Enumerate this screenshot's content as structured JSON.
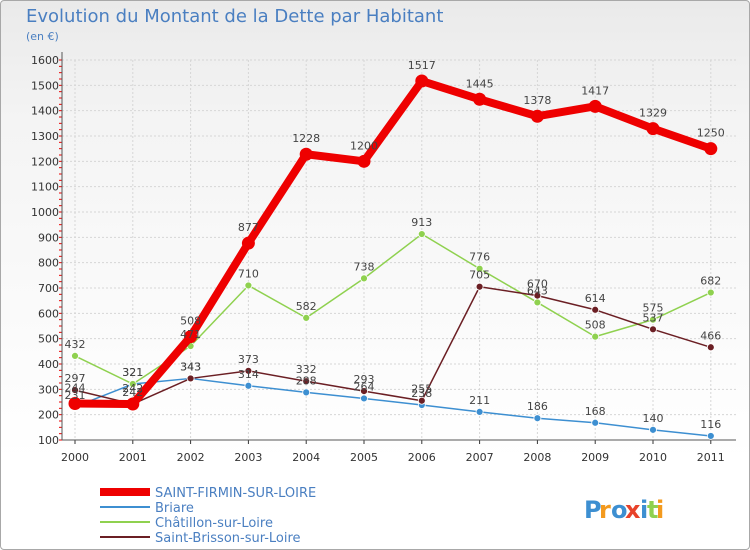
{
  "chart_data": {
    "type": "line",
    "title": "Evolution du Montant de la Dette par Habitant",
    "subtitle": "(en €)",
    "x": [
      2000,
      2001,
      2002,
      2003,
      2004,
      2005,
      2006,
      2007,
      2008,
      2009,
      2010,
      2011
    ],
    "ylim": [
      100,
      1600
    ],
    "yticks": [
      100,
      200,
      300,
      400,
      500,
      600,
      700,
      800,
      900,
      1000,
      1100,
      1200,
      1300,
      1400,
      1500,
      1600
    ],
    "grid": true,
    "legend_position": "bottom-left",
    "series": [
      {
        "name": "SAINT-FIRMIN-SUR-LOIRE",
        "color": "#ee0000",
        "values": [
          244,
          242,
          508,
          877,
          1228,
          1200,
          1517,
          1445,
          1378,
          1417,
          1329,
          1250
        ]
      },
      {
        "name": "Briare",
        "color": "#3d8fd1",
        "values": [
          231,
          321,
          343,
          314,
          288,
          264,
          238,
          211,
          186,
          168,
          140,
          116
        ]
      },
      {
        "name": "Châtillon-sur-Loire",
        "color": "#8fd14f",
        "values": [
          432,
          321,
          471,
          710,
          582,
          738,
          913,
          776,
          643,
          508,
          575,
          682
        ]
      },
      {
        "name": "Saint-Brisson-sur-Loire",
        "color": "#6b1f24",
        "values": [
          297,
          242,
          343,
          373,
          332,
          293,
          255,
          705,
          670,
          614,
          537,
          466
        ]
      }
    ]
  },
  "logo": {
    "text": "Proxiti"
  }
}
